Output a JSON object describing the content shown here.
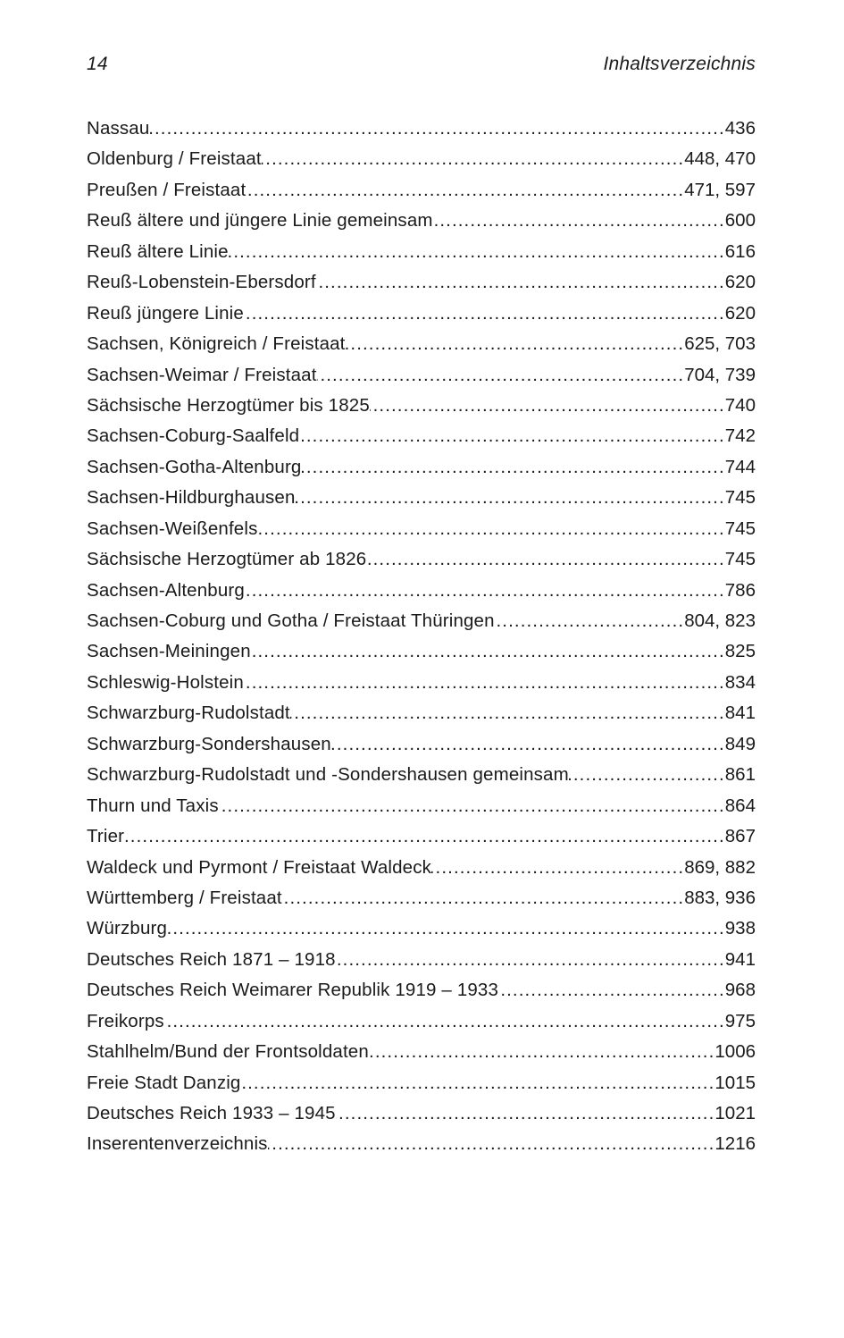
{
  "colors": {
    "text": "#1a1a1a",
    "background": "#ffffff"
  },
  "page": {
    "number": "14",
    "header_title": "Inhaltsverzeichnis"
  },
  "toc": {
    "entries": [
      {
        "title": "Nassau",
        "pages": "436"
      },
      {
        "title": "Oldenburg / Freistaat",
        "pages": "448, 470"
      },
      {
        "title": "Preußen / Freistaat",
        "pages": "471, 597"
      },
      {
        "title": "Reuß ältere und jüngere Linie gemeinsam",
        "pages": "600"
      },
      {
        "title": "Reuß ältere Linie",
        "pages": "616"
      },
      {
        "title": "Reuß-Lobenstein-Ebersdorf",
        "pages": "620"
      },
      {
        "title": "Reuß jüngere Linie",
        "pages": "620"
      },
      {
        "title": "Sachsen, Königreich / Freistaat",
        "pages": "625, 703"
      },
      {
        "title": "Sachsen-Weimar / Freistaat",
        "pages": "704, 739"
      },
      {
        "title": "Sächsische Herzogtümer bis 1825",
        "pages": "740"
      },
      {
        "title": "Sachsen-Coburg-Saalfeld",
        "pages": "742"
      },
      {
        "title": "Sachsen-Gotha-Altenburg",
        "pages": "744"
      },
      {
        "title": "Sachsen-Hildburghausen",
        "pages": "745"
      },
      {
        "title": "Sachsen-Weißenfels",
        "pages": "745"
      },
      {
        "title": "Sächsische Herzogtümer ab 1826",
        "pages": "745"
      },
      {
        "title": "Sachsen-Altenburg",
        "pages": "786"
      },
      {
        "title": "Sachsen-Coburg und Gotha / Freistaat Thüringen",
        "pages": "804, 823"
      },
      {
        "title": "Sachsen-Meiningen",
        "pages": "825"
      },
      {
        "title": "Schleswig-Holstein",
        "pages": "834"
      },
      {
        "title": "Schwarzburg-Rudolstadt",
        "pages": "841"
      },
      {
        "title": "Schwarzburg-Sondershausen",
        "pages": "849"
      },
      {
        "title": "Schwarzburg-Rudolstadt und -Sondershausen gemeinsam",
        "pages": "861"
      },
      {
        "title": "Thurn und Taxis",
        "pages": "864"
      },
      {
        "title": "Trier",
        "pages": "867"
      },
      {
        "title": "Waldeck und Pyrmont / Freistaat Waldeck",
        "pages": "869, 882"
      },
      {
        "title": "Württemberg / Freistaat",
        "pages": "883, 936"
      },
      {
        "title": "Würzburg",
        "pages": "938"
      },
      {
        "title": "Deutsches Reich 1871 – 1918",
        "pages": "941"
      },
      {
        "title": "Deutsches Reich Weimarer Republik 1919 – 1933",
        "pages": "968"
      },
      {
        "title": "Freikorps",
        "pages": "975"
      },
      {
        "title": "Stahlhelm/Bund der Frontsoldaten",
        "pages": "1006"
      },
      {
        "title": "Freie Stadt Danzig",
        "pages": "1015"
      },
      {
        "title": "Deutsches Reich 1933 – 1945",
        "pages": "1021"
      },
      {
        "title": "Inserentenverzeichnis",
        "pages": "1216"
      }
    ]
  }
}
